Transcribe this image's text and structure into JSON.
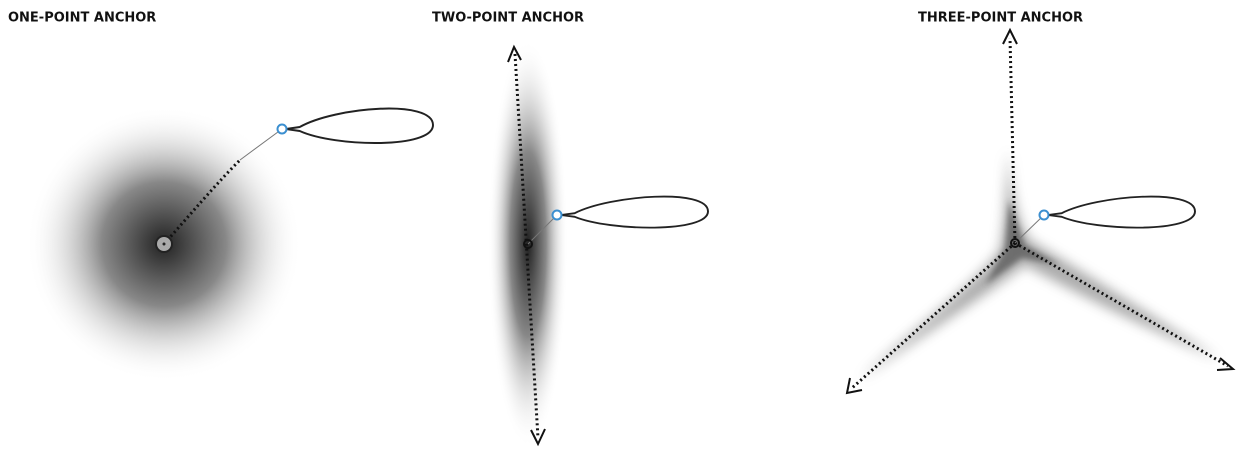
{
  "panels": [
    {
      "title": "ONE-POINT ANCHOR"
    },
    {
      "title": "TWO-POINT ANCHOR"
    },
    {
      "title": "THREE-POINT ANCHOR"
    }
  ]
}
